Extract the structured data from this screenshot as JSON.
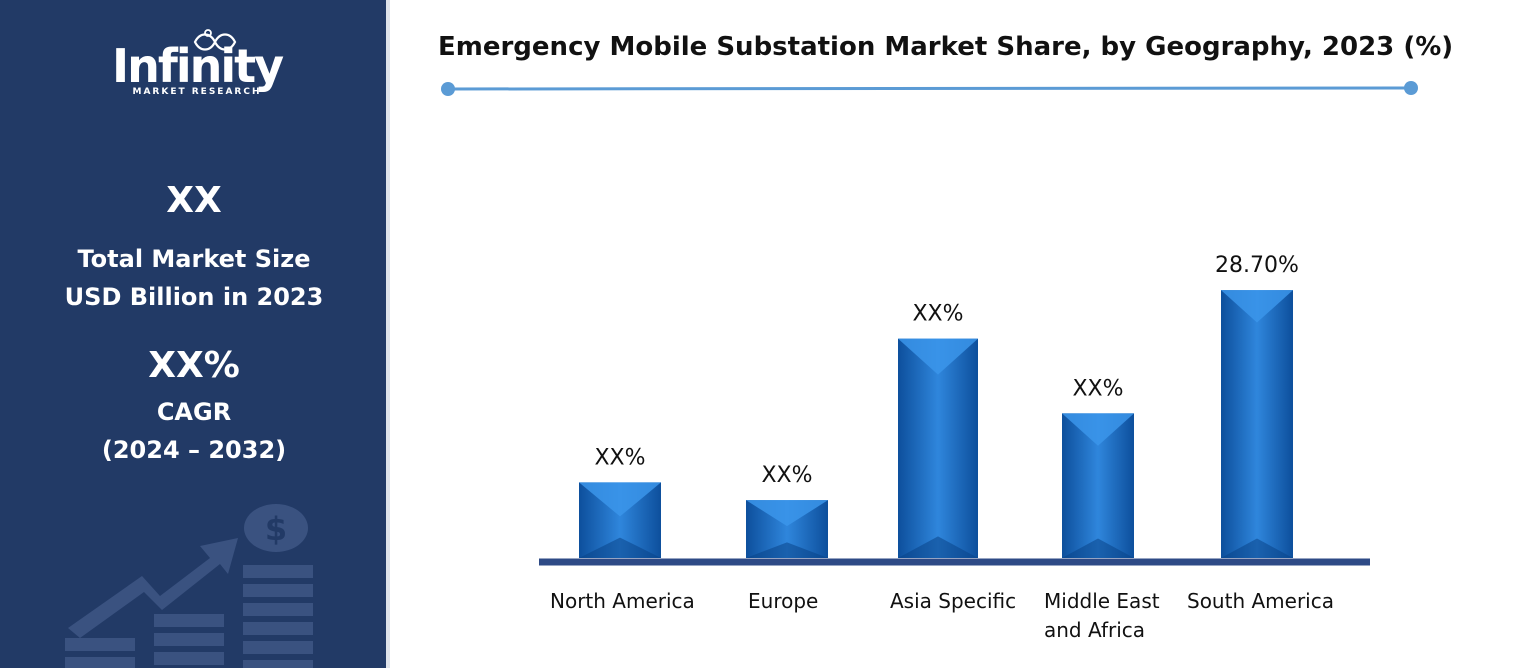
{
  "sidebar": {
    "logo_word": "Infinity",
    "logo_tagline": "MARKET RESEARCH",
    "market_size_value": "XX",
    "market_size_label_line1": "Total Market Size",
    "market_size_label_line2": "USD Billion in 2023",
    "cagr_value": "XX%",
    "cagr_label": "CAGR",
    "cagr_period": "(2024 – 2032)",
    "deco_icon": "dollar-coin-growth-arrow",
    "background_color": "#223a66"
  },
  "chart_data": {
    "type": "bar",
    "title": "Emergency Mobile Substation Market Share, by Geography, 2023 (%)",
    "categories": [
      "North America",
      "Europe",
      "Asia Specific",
      "Middle East and Africa",
      "South America"
    ],
    "category_lines": [
      [
        "North America"
      ],
      [
        "Europe"
      ],
      [
        "Asia Specific"
      ],
      [
        "Middle East",
        "and Africa"
      ],
      [
        "South America"
      ]
    ],
    "values": [
      8.1,
      6.2,
      23.5,
      15.5,
      28.7
    ],
    "data_labels": [
      "XX%",
      "XX%",
      "XX%",
      "XX%",
      "28.70%"
    ],
    "ylim": [
      0,
      33
    ],
    "xlabel": "",
    "ylabel": "",
    "grid": false,
    "legend": "none",
    "bar_color": "#1f6fc4",
    "axis_color": "#2e4a86",
    "rule_color": "#5b9bd5"
  }
}
